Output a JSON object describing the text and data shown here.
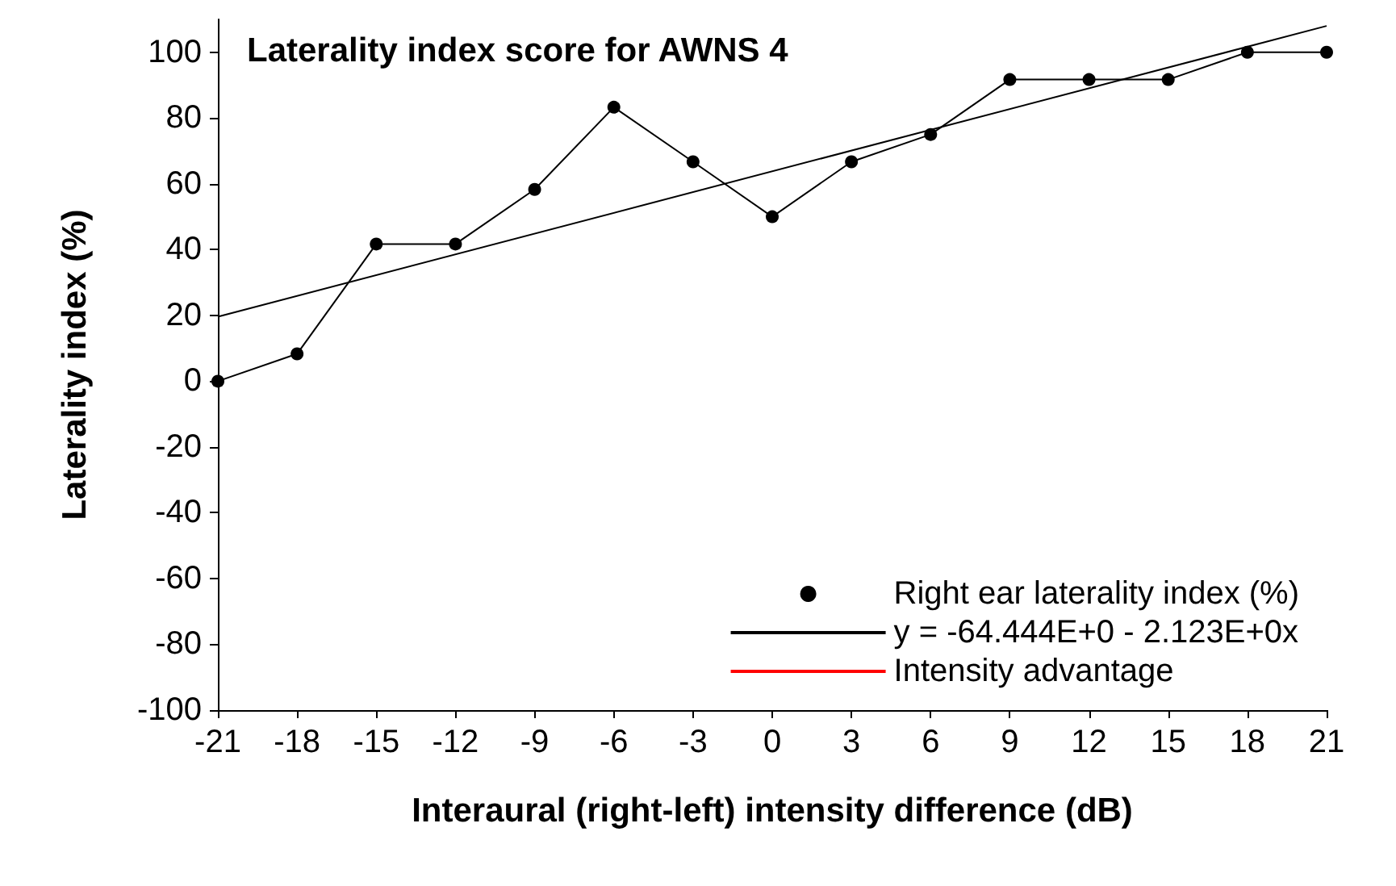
{
  "chart_data": {
    "type": "line",
    "title": "Laterality index score for AWNS 4",
    "xlabel": "Interaural (right-left) intensity difference (dB)",
    "ylabel": "Laterality index (%)",
    "xlim": [
      -21,
      21
    ],
    "xticks": [
      -21,
      -18,
      -15,
      -12,
      -9,
      -6,
      -3,
      0,
      3,
      6,
      9,
      12,
      15,
      18,
      21
    ],
    "ylim": [
      -100,
      110
    ],
    "yticks": [
      -100,
      -80,
      -60,
      -40,
      -20,
      0,
      20,
      40,
      60,
      80,
      100
    ],
    "grid": false,
    "legend": "bottom right",
    "line_style": "solid",
    "series": [
      {
        "name": "Right ear laterality index (%)",
        "color": "#000000",
        "marker": "circle",
        "x": [
          -21,
          -18,
          -15,
          -12,
          -9,
          -6,
          -3,
          0,
          3,
          6,
          9,
          12,
          15,
          18,
          21
        ],
        "values": [
          0,
          8.3,
          41.7,
          41.7,
          58.3,
          83.3,
          66.7,
          50,
          66.7,
          75,
          91.7,
          91.7,
          91.7,
          100,
          100
        ]
      },
      {
        "name": "y = -64.444E+0 - 2.123E+0x",
        "color": "#000000",
        "marker": "none",
        "x": [
          -21,
          21
        ],
        "values": [
          19.6,
          108
        ]
      },
      {
        "name": "Intensity advantage",
        "color": "#ff0000",
        "marker": "none"
      }
    ]
  }
}
